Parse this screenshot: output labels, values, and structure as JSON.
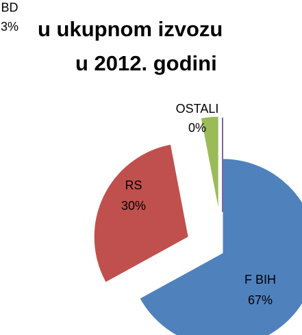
{
  "chart_data": {
    "type": "pie",
    "title": [
      "u ukupnom izvozu",
      "u 2012. godini"
    ],
    "categories": [
      "F BIH",
      "RS",
      "BD",
      "OSTALI"
    ],
    "values": [
      67,
      30,
      3,
      0
    ],
    "value_labels": [
      "67%",
      "30%",
      "3%",
      "0%"
    ],
    "colors": [
      "#4f81bd",
      "#c0504d",
      "#9bbb59",
      "#8064a2"
    ]
  }
}
